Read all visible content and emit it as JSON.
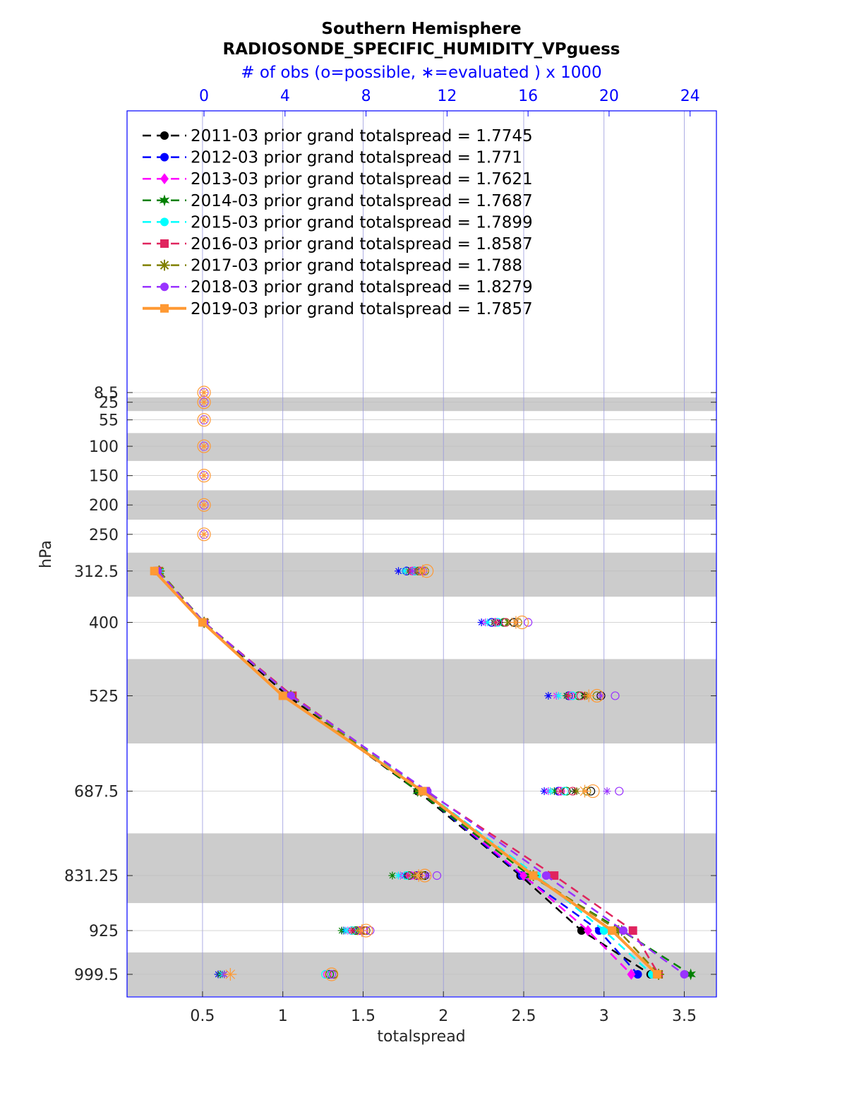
{
  "chart_data": {
    "type": "line",
    "title": "Southern Hemisphere",
    "subtitle": "RADIOSONDE_SPECIFIC_HUMIDITY_VPguess",
    "top_axis_label": "# of obs (o=possible, ∗=evaluated ) x 1000",
    "xlabel": "totalspread",
    "ylabel": "hPa",
    "xlim": [
      0.03,
      3.7
    ],
    "top_xlim": [
      -3.8,
      25.3
    ],
    "x_ticks": [
      "0.5",
      "1",
      "1.5",
      "2",
      "2.5",
      "3",
      "3.5"
    ],
    "top_ticks": [
      "0",
      "4",
      "8",
      "12",
      "16",
      "20",
      "24"
    ],
    "levels": [
      8.5,
      25,
      55,
      100,
      150,
      200,
      250,
      312.5,
      400,
      525,
      687.5,
      831.25,
      925,
      999.5
    ],
    "level_labels": [
      "8.5",
      "25",
      "55",
      "100",
      "150",
      "200",
      "250",
      "312.5",
      "400",
      "525",
      "687.5",
      "831.25",
      "925",
      "999.5"
    ],
    "y_scale": "linear, reversed (pressure increases downward)",
    "grid": true,
    "legend_position": "top-left",
    "series": [
      {
        "name": "2011-03 prior grand totalspread = 1.7745",
        "color": "#000000",
        "marker": "circle",
        "line": "dashed",
        "levels": [
          312.5,
          400,
          525,
          687.5,
          831.25,
          925,
          999.5
        ],
        "values": [
          0.22,
          0.51,
          1.03,
          1.84,
          2.48,
          2.86,
          3.29
        ],
        "obs_possible": [
          10.4,
          15.3,
          19.6,
          19.1,
          10.9,
          8.0,
          6.4
        ],
        "obs_evaluated": [
          9.9,
          14.6,
          18.8,
          18.3,
          10.4,
          7.4,
          0.9
        ]
      },
      {
        "name": "2012-03 prior grand totalspread = 1.771",
        "color": "#0000ff",
        "marker": "circle",
        "line": "dashed",
        "levels": [
          312.5,
          400,
          525,
          687.5,
          831.25,
          925,
          999.5
        ],
        "values": [
          0.23,
          0.51,
          1.05,
          1.85,
          2.49,
          2.97,
          3.21
        ],
        "obs_possible": [
          10.0,
          14.2,
          18.0,
          17.5,
          10.5,
          7.7,
          6.2
        ],
        "obs_evaluated": [
          9.6,
          13.7,
          17.0,
          16.8,
          9.9,
          6.9,
          0.7
        ]
      },
      {
        "name": "2013-03 prior grand totalspread = 1.7621",
        "color": "#ff00ff",
        "marker": "diamond",
        "line": "dashed",
        "levels": [
          312.5,
          400,
          525,
          687.5,
          831.25,
          925,
          999.5
        ],
        "values": [
          0.23,
          0.51,
          1.05,
          1.86,
          2.5,
          2.9,
          3.17
        ],
        "obs_possible": [
          10.3,
          14.4,
          18.1,
          17.6,
          10.2,
          7.6,
          6.1
        ],
        "obs_evaluated": [
          9.9,
          13.9,
          17.4,
          17.0,
          9.7,
          7.1,
          0.8
        ]
      },
      {
        "name": "2014-03 prior grand totalspread = 1.7687",
        "color": "#008000",
        "marker": "star6",
        "line": "dashed",
        "levels": [
          312.5,
          400,
          525,
          687.5,
          831.25,
          925,
          999.5
        ],
        "values": [
          0.23,
          0.51,
          1.05,
          1.84,
          2.54,
          3.11,
          3.54
        ],
        "obs_possible": [
          10.6,
          14.8,
          18.5,
          17.9,
          10.1,
          7.5,
          6.2
        ],
        "obs_evaluated": [
          10.1,
          14.3,
          17.9,
          17.3,
          9.3,
          6.8,
          0.8
        ]
      },
      {
        "name": "2015-03 prior grand totalspread = 1.7899",
        "color": "#00ffff",
        "marker": "circle",
        "line": "dashed",
        "levels": [
          312.5,
          400,
          525,
          687.5,
          831.25,
          925,
          999.5
        ],
        "values": [
          0.23,
          0.51,
          1.05,
          1.88,
          2.58,
          3.0,
          3.3
        ],
        "obs_possible": [
          10.4,
          14.5,
          18.2,
          17.8,
          10.0,
          7.3,
          6.0
        ],
        "obs_evaluated": [
          9.9,
          14.0,
          17.5,
          17.1,
          9.6,
          7.0,
          0.9
        ]
      },
      {
        "name": "2016-03 prior grand totalspread = 1.8587",
        "color": "#e0245e",
        "marker": "square",
        "line": "dashed",
        "levels": [
          312.5,
          400,
          525,
          687.5,
          831.25,
          925,
          999.5
        ],
        "values": [
          0.22,
          0.51,
          1.06,
          1.89,
          2.69,
          3.18,
          3.34
        ],
        "obs_possible": [
          10.7,
          14.9,
          18.6,
          18.2,
          10.6,
          7.9,
          6.3
        ],
        "obs_evaluated": [
          10.2,
          14.4,
          18.0,
          17.6,
          10.1,
          7.3,
          1.0
        ]
      },
      {
        "name": "2017-03 prior grand totalspread = 1.788",
        "color": "#808000",
        "marker": "asterisk",
        "line": "dashed",
        "levels": [
          312.5,
          400,
          525,
          687.5,
          831.25,
          925,
          999.5
        ],
        "values": [
          0.23,
          0.51,
          1.05,
          1.86,
          2.56,
          3.09,
          3.34
        ],
        "obs_possible": [
          10.9,
          15.5,
          19.4,
          18.9,
          10.8,
          8.0,
          6.4
        ],
        "obs_evaluated": [
          10.5,
          15.0,
          18.9,
          18.4,
          10.4,
          7.6,
          1.0
        ]
      },
      {
        "name": "2018-03 prior grand totalspread = 1.8279",
        "color": "#9933ff",
        "marker": "circle",
        "line": "dashed",
        "levels": [
          312.5,
          400,
          525,
          687.5,
          831.25,
          925,
          999.5
        ],
        "values": [
          0.22,
          0.51,
          1.05,
          1.9,
          2.64,
          3.12,
          3.5
        ],
        "obs_possible": [
          10.8,
          16.0,
          20.3,
          20.5,
          11.5,
          8.2,
          6.3
        ],
        "obs_evaluated": [
          10.3,
          15.4,
          19.6,
          19.9,
          11.0,
          7.8,
          1.0
        ]
      },
      {
        "name": "2019-03 prior grand totalspread = 1.7857",
        "color": "#ff9933",
        "marker": "square",
        "line": "solid",
        "levels": [
          312.5,
          400,
          525,
          687.5,
          831.25,
          925,
          999.5
        ],
        "values": [
          0.2,
          0.5,
          1.0,
          1.87,
          2.56,
          3.05,
          3.33
        ],
        "obs_possible": [
          11.0,
          15.7,
          19.4,
          19.2,
          10.9,
          8.0,
          6.3
        ],
        "obs_evaluated": [
          10.8,
          15.4,
          19.0,
          18.8,
          10.6,
          7.8,
          1.3
        ]
      }
    ],
    "upper_levels_obs": {
      "levels": [
        8.5,
        25,
        55,
        100,
        150,
        200,
        250
      ],
      "obs_possible": [
        0,
        0,
        0,
        0,
        0,
        0,
        0
      ],
      "obs_evaluated": [
        0,
        0,
        0,
        0,
        0,
        0,
        0
      ]
    }
  }
}
